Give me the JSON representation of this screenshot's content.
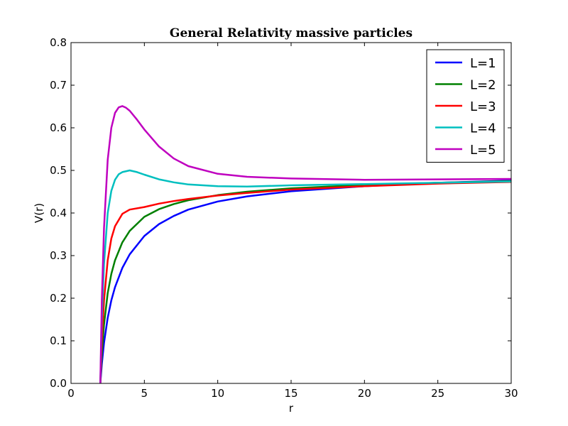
{
  "chart_data": {
    "type": "line",
    "title": "General Relativity massive particles",
    "xlabel": "r",
    "ylabel": "V(r)",
    "xlim": [
      0,
      30
    ],
    "ylim": [
      0.0,
      0.8
    ],
    "x_ticks": [
      0,
      5,
      10,
      15,
      20,
      25,
      30
    ],
    "x_tick_labels": [
      "0",
      "5",
      "10",
      "15",
      "20",
      "25",
      "30"
    ],
    "y_ticks": [
      0.0,
      0.1,
      0.2,
      0.3,
      0.4,
      0.5,
      0.6,
      0.7,
      0.8
    ],
    "y_tick_labels": [
      "0.0",
      "0.1",
      "0.2",
      "0.3",
      "0.4",
      "0.5",
      "0.6",
      "0.7",
      "0.8"
    ],
    "legend_position": "top-right",
    "series": [
      {
        "name": "L=1",
        "color": "#0000ff",
        "x": [
          2.0,
          2.1,
          2.25,
          2.5,
          2.75,
          3.0,
          3.5,
          4.0,
          5.0,
          6.0,
          7.0,
          8.0,
          10.0,
          12.0,
          15.0,
          20.0,
          25.0,
          30.0
        ],
        "y": [
          0.0,
          0.045,
          0.095,
          0.154,
          0.195,
          0.226,
          0.271,
          0.303,
          0.346,
          0.374,
          0.393,
          0.408,
          0.427,
          0.439,
          0.451,
          0.463,
          0.471,
          0.476
        ]
      },
      {
        "name": "L=2",
        "color": "#008000",
        "x": [
          2.0,
          2.1,
          2.25,
          2.5,
          2.75,
          3.0,
          3.5,
          4.0,
          5.0,
          6.0,
          7.0,
          8.0,
          10.0,
          12.0,
          15.0,
          20.0,
          25.0,
          30.0
        ],
        "y": [
          0.0,
          0.068,
          0.138,
          0.212,
          0.257,
          0.289,
          0.331,
          0.358,
          0.391,
          0.409,
          0.421,
          0.43,
          0.442,
          0.45,
          0.458,
          0.466,
          0.471,
          0.475
        ]
      },
      {
        "name": "L=3",
        "color": "#ff0000",
        "x": [
          2.0,
          2.1,
          2.25,
          2.5,
          2.75,
          3.0,
          3.5,
          4.0,
          5.0,
          6.0,
          7.0,
          8.0,
          10.0,
          12.0,
          15.0,
          20.0,
          25.0,
          30.0
        ],
        "y": [
          0.0,
          0.101,
          0.195,
          0.289,
          0.34,
          0.369,
          0.398,
          0.408,
          0.414,
          0.422,
          0.428,
          0.433,
          0.441,
          0.447,
          0.455,
          0.463,
          0.469,
          0.473
        ]
      },
      {
        "name": "L=4",
        "color": "#00bfbf",
        "x": [
          2.0,
          2.1,
          2.25,
          2.5,
          2.75,
          3.0,
          3.25,
          3.5,
          4.0,
          4.5,
          5.0,
          6.0,
          7.0,
          8.0,
          10.0,
          12.0,
          15.0,
          20.0,
          25.0,
          30.0
        ],
        "y": [
          0.0,
          0.15,
          0.28,
          0.4,
          0.452,
          0.478,
          0.491,
          0.496,
          0.5,
          0.496,
          0.49,
          0.479,
          0.472,
          0.467,
          0.463,
          0.462,
          0.465,
          0.468,
          0.471,
          0.474
        ]
      },
      {
        "name": "L=5",
        "color": "#bf00bf",
        "x": [
          2.0,
          2.1,
          2.25,
          2.5,
          2.75,
          3.0,
          3.25,
          3.5,
          3.75,
          4.0,
          4.5,
          5.0,
          6.0,
          7.0,
          8.0,
          10.0,
          12.0,
          15.0,
          20.0,
          25.0,
          30.0
        ],
        "y": [
          0.0,
          0.195,
          0.365,
          0.525,
          0.6,
          0.635,
          0.648,
          0.651,
          0.647,
          0.64,
          0.619,
          0.596,
          0.556,
          0.528,
          0.51,
          0.492,
          0.485,
          0.481,
          0.478,
          0.479,
          0.48
        ]
      }
    ]
  }
}
